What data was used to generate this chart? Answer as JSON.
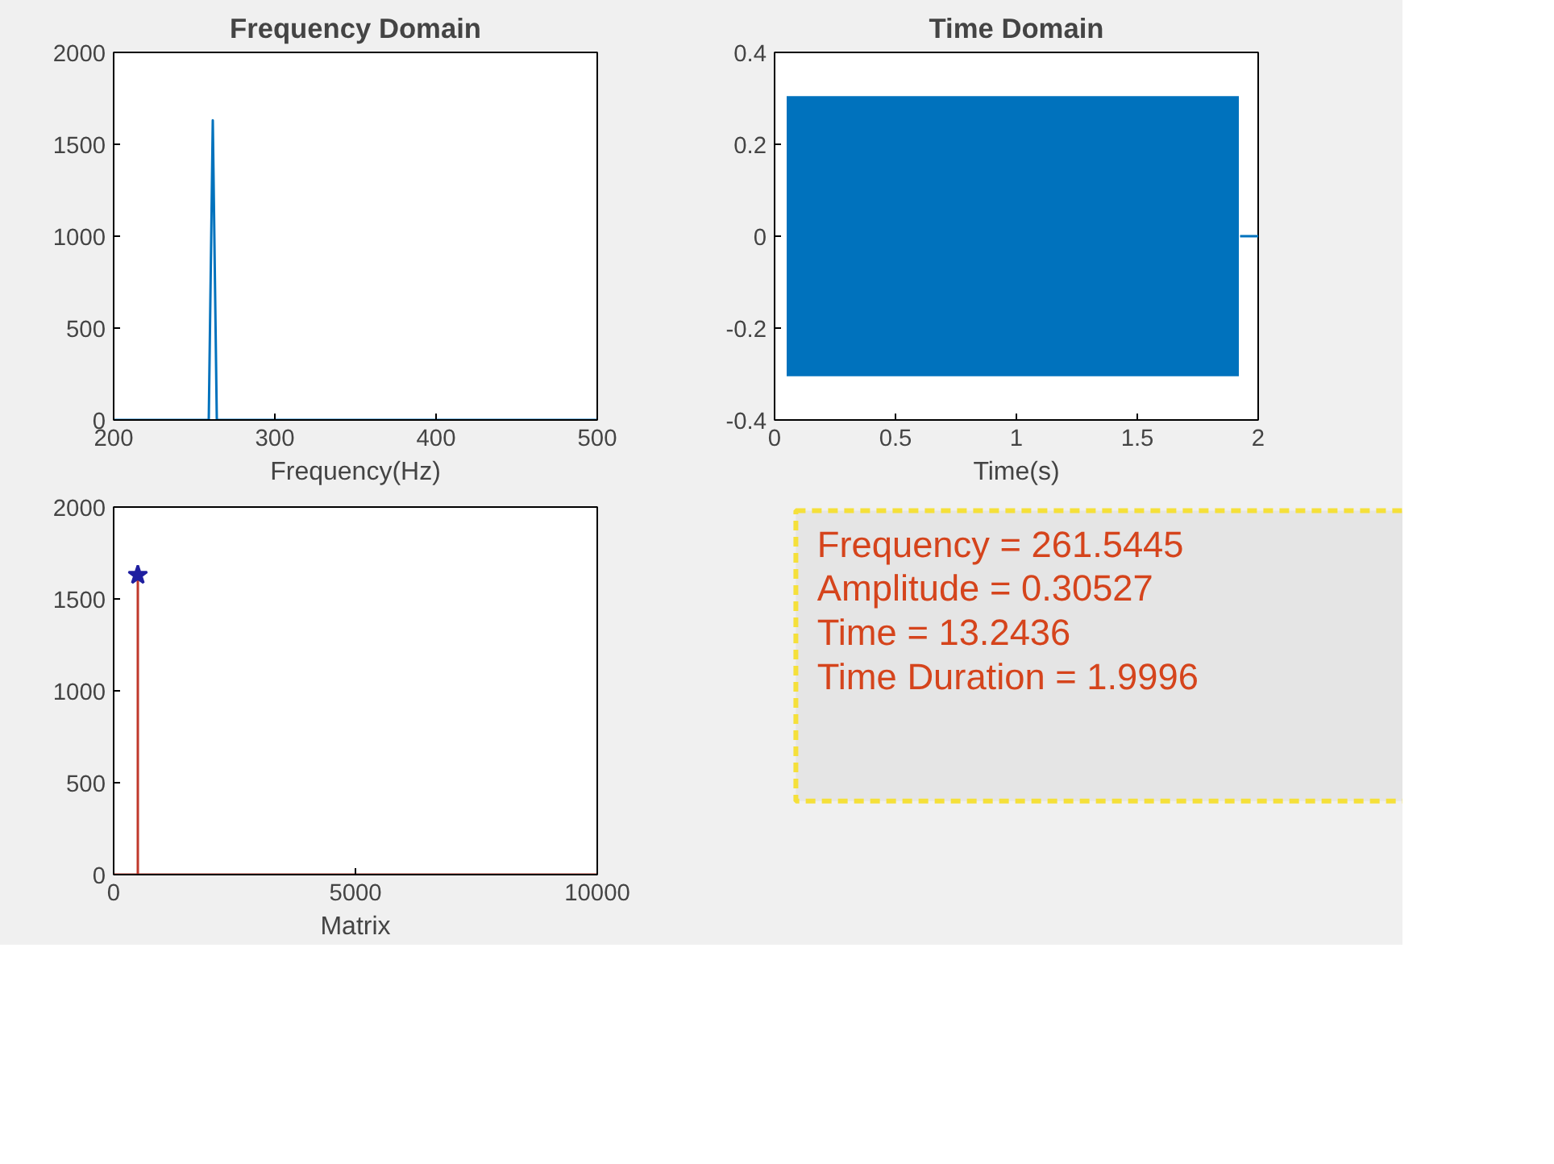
{
  "chart_data": [
    {
      "type": "line",
      "title": "Frequency Domain",
      "xlabel": "Frequency(Hz)",
      "xlim": [
        200,
        500
      ],
      "ylim": [
        0,
        2000
      ],
      "xticks": [
        200,
        300,
        400,
        500
      ],
      "yticks": [
        0,
        500,
        1000,
        1500,
        2000
      ],
      "series": [
        {
          "color": "#0072bd",
          "x": [
            200,
            259,
            261.5,
            264,
            500
          ],
          "values": [
            0,
            0,
            1630,
            0,
            0
          ]
        }
      ]
    },
    {
      "type": "line",
      "title": "Time Domain",
      "xlabel": "Time(s)",
      "xlim": [
        0,
        2
      ],
      "ylim": [
        -0.4,
        0.4
      ],
      "xticks": [
        0,
        0.5,
        1,
        1.5,
        2
      ],
      "yticks": [
        -0.4,
        -0.2,
        0,
        0.2,
        0.4
      ],
      "series": [
        {
          "type": "area",
          "color": "#0072bd",
          "x": [
            0.05,
            1.92
          ],
          "values": [
            0.305,
            0.305
          ]
        },
        {
          "type": "area",
          "color": "#0072bd",
          "x": [
            0.05,
            1.92
          ],
          "values": [
            -0.305,
            -0.305
          ]
        },
        {
          "color": "#0072bd",
          "x": [
            1.925,
            2
          ],
          "values": [
            0,
            0
          ]
        }
      ]
    },
    {
      "type": "line",
      "xlabel": "Matrix",
      "xlim": [
        0,
        10000
      ],
      "ylim": [
        0,
        2000
      ],
      "xticks": [
        0,
        5000,
        10000
      ],
      "yticks": [
        0,
        500,
        1000,
        1500,
        2000
      ],
      "series": [
        {
          "color": "#c0392b",
          "x": [
            0,
            500,
            500,
            500,
            10000
          ],
          "values": [
            0,
            0,
            1630,
            0,
            0
          ]
        },
        {
          "type": "scatter",
          "marker": "star",
          "color": "#1f1fa0",
          "x": [
            500
          ],
          "values": [
            1630
          ]
        }
      ]
    },
    {
      "type": "other",
      "annotations": [
        "Frequency = 261.5445",
        "Amplitude = 0.30527",
        "Time = 13.2436",
        "Time Duration = 1.9996"
      ]
    }
  ]
}
